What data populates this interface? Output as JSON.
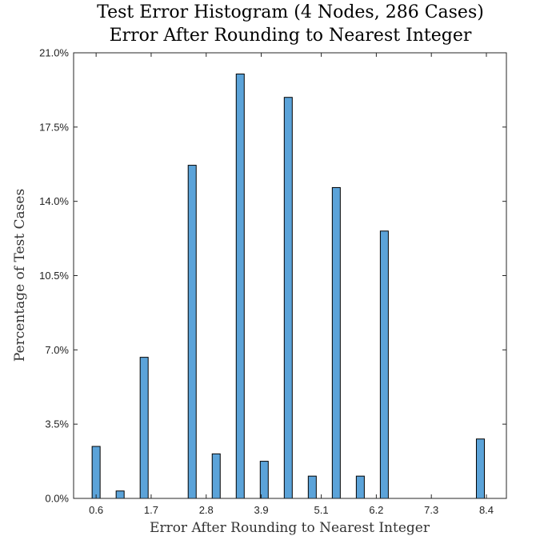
{
  "chart_data": {
    "type": "bar",
    "title": "Test Error Histogram (4 Nodes, 286 Cases)",
    "subtitle": "Error After Rounding to Nearest Integer",
    "xlabel": "Error After Rounding to Nearest Integer",
    "ylabel": "Percentage of Test Cases",
    "xlim": [
      0.15,
      8.8
    ],
    "ylim": [
      0,
      21
    ],
    "x_ticks": [
      0.6,
      1.7,
      2.8,
      3.9,
      5.1,
      6.2,
      7.3,
      8.4
    ],
    "x_tick_labels": [
      "0.6",
      "1.7",
      "2.8",
      "3.9",
      "5.1",
      "6.2",
      "7.3",
      "8.4"
    ],
    "y_ticks": [
      0,
      3.5,
      7,
      10.5,
      14,
      17.5,
      21
    ],
    "y_tick_labels": [
      "0.0%",
      "3.5%",
      "7.0%",
      "10.5%",
      "14.0%",
      "17.5%",
      "21.0%"
    ],
    "bar_width": 0.16,
    "bar_color": "#5ba3d9",
    "x": [
      0.6,
      1.08,
      1.56,
      2.52,
      3.0,
      3.48,
      3.96,
      4.44,
      4.92,
      5.4,
      5.88,
      6.36,
      8.28
    ],
    "values": [
      2.45,
      0.35,
      6.65,
      15.7,
      2.1,
      20.0,
      1.75,
      18.9,
      1.05,
      14.65,
      1.05,
      12.6,
      2.8
    ],
    "grid": false,
    "box": true
  }
}
